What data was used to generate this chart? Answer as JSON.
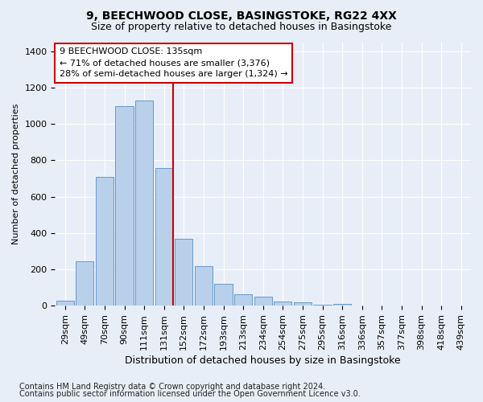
{
  "title1": "9, BEECHWOOD CLOSE, BASINGSTOKE, RG22 4XX",
  "title2": "Size of property relative to detached houses in Basingstoke",
  "xlabel": "Distribution of detached houses by size in Basingstoke",
  "ylabel": "Number of detached properties",
  "bar_labels": [
    "29sqm",
    "49sqm",
    "70sqm",
    "90sqm",
    "111sqm",
    "131sqm",
    "152sqm",
    "172sqm",
    "193sqm",
    "213sqm",
    "234sqm",
    "254sqm",
    "275sqm",
    "295sqm",
    "316sqm",
    "336sqm",
    "357sqm",
    "377sqm",
    "398sqm",
    "418sqm",
    "439sqm"
  ],
  "bar_values": [
    30,
    245,
    710,
    1100,
    1130,
    760,
    370,
    220,
    120,
    65,
    50,
    25,
    20,
    5,
    10,
    3,
    2,
    0,
    0,
    0,
    0
  ],
  "bar_color": "#b8d0ea",
  "bar_edgecolor": "#6699cc",
  "vline_color": "#cc0000",
  "annotation_text": "9 BEECHWOOD CLOSE: 135sqm\n← 71% of detached houses are smaller (3,376)\n28% of semi-detached houses are larger (1,324) →",
  "annotation_box_facecolor": "#ffffff",
  "annotation_box_edgecolor": "#cc0000",
  "ylim": [
    0,
    1450
  ],
  "yticks": [
    0,
    200,
    400,
    600,
    800,
    1000,
    1200,
    1400
  ],
  "footnote1": "Contains HM Land Registry data © Crown copyright and database right 2024.",
  "footnote2": "Contains public sector information licensed under the Open Government Licence v3.0.",
  "background_color": "#e8eef8",
  "plot_background": "#e8eef8",
  "grid_color": "#ffffff",
  "title1_fontsize": 10,
  "title2_fontsize": 9,
  "axis_fontsize": 8,
  "annotation_fontsize": 8,
  "footnote_fontsize": 7
}
